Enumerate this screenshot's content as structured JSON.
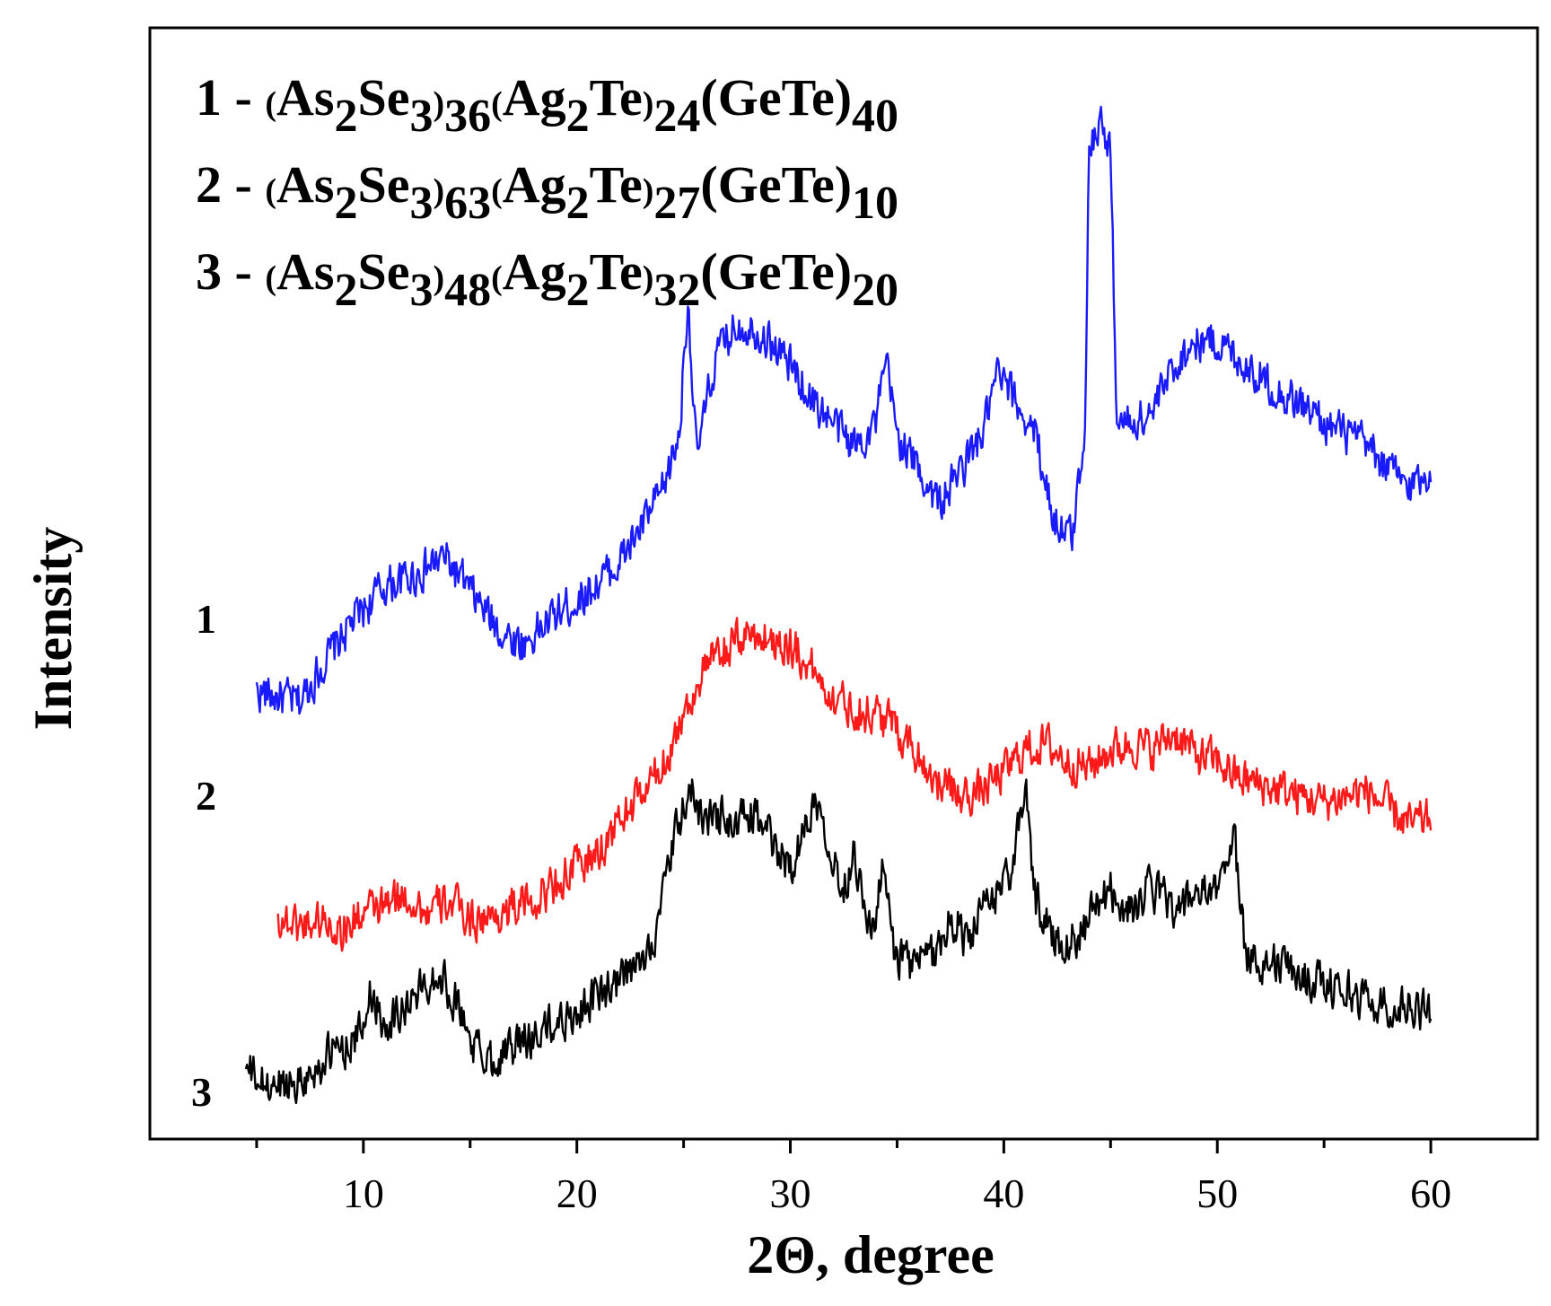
{
  "chart_data": {
    "type": "line",
    "xlabel": "2Θ, degree",
    "ylabel": "Intensity",
    "xlim": [
      0,
      65
    ],
    "x_ticks": [
      10,
      20,
      30,
      40,
      50,
      60
    ],
    "y_ticks_shown": false,
    "legend_position": "top-left",
    "legend": [
      {
        "number": "1",
        "parts": [
          [
            "-",
            ""
          ],
          [
            "(",
            "s"
          ],
          [
            "As",
            ""
          ],
          [
            "2",
            "sub"
          ],
          [
            "Se",
            ""
          ],
          [
            "3",
            "sub"
          ],
          [
            ")",
            "s"
          ],
          [
            "36",
            "sub"
          ],
          [
            "(",
            "s"
          ],
          [
            "Ag",
            ""
          ],
          [
            "2",
            "sub"
          ],
          [
            "Te",
            ""
          ],
          [
            ")",
            "s"
          ],
          [
            "24",
            "sub"
          ],
          [
            "(GeTe)",
            ""
          ],
          [
            "40",
            "sub"
          ]
        ]
      },
      {
        "number": "2",
        "parts": [
          [
            "-",
            ""
          ],
          [
            "(",
            "s"
          ],
          [
            "As",
            ""
          ],
          [
            "2",
            "sub"
          ],
          [
            "Se",
            ""
          ],
          [
            "3",
            "sub"
          ],
          [
            ")",
            "s"
          ],
          [
            "63",
            "sub"
          ],
          [
            "(",
            "s"
          ],
          [
            "Ag",
            ""
          ],
          [
            "2",
            "sub"
          ],
          [
            "Te",
            ""
          ],
          [
            ")",
            "s"
          ],
          [
            "27",
            "sub"
          ],
          [
            "(GeTe)",
            ""
          ],
          [
            "10",
            "sub"
          ]
        ]
      },
      {
        "number": "3",
        "parts": [
          [
            "-",
            ""
          ],
          [
            "(",
            "s"
          ],
          [
            "As",
            ""
          ],
          [
            "2",
            "sub"
          ],
          [
            "Se",
            ""
          ],
          [
            "3",
            "sub"
          ],
          [
            ")",
            "s"
          ],
          [
            "48",
            "sub"
          ],
          [
            "(",
            "s"
          ],
          [
            "Ag",
            ""
          ],
          [
            "2",
            "sub"
          ],
          [
            "Te",
            ""
          ],
          [
            ")",
            "s"
          ],
          [
            "32",
            "sub"
          ],
          [
            "(GeTe)",
            ""
          ],
          [
            "20",
            "sub"
          ]
        ]
      }
    ],
    "series": [
      {
        "label": "1",
        "composition": "(As2Se3)36(Ag2Te)24(GeTe)40",
        "color": "#1a1aff",
        "x": [
          5.0,
          7.0,
          8.0,
          9.5,
          11.0,
          12.5,
          13.8,
          15.0,
          16.5,
          17.5,
          19.0,
          20.5,
          22.0,
          23.0,
          24.0,
          24.8,
          25.2,
          25.6,
          26.5,
          27.5,
          28.5,
          30.0,
          31.0,
          32.0,
          33.0,
          34.0,
          34.5,
          35.0,
          36.0,
          37.0,
          38.0,
          39.0,
          39.7,
          40.5,
          41.5,
          42.3,
          43.2,
          43.8,
          44.0,
          44.5,
          45.0,
          45.3,
          46.0,
          47.0,
          48.0,
          49.0,
          50.0,
          51.0,
          52.0,
          53.0,
          54.0,
          55.0,
          56.0,
          57.0,
          58.0,
          59.0,
          60.0
        ],
        "y": [
          2.0,
          1.9,
          2.2,
          2.6,
          2.9,
          3.0,
          3.15,
          2.85,
          2.5,
          2.4,
          2.65,
          2.85,
          3.1,
          3.4,
          3.7,
          4.2,
          5.4,
          4.0,
          4.85,
          5.15,
          5.1,
          4.8,
          4.5,
          4.3,
          4.1,
          4.3,
          4.8,
          4.2,
          3.9,
          3.6,
          3.9,
          4.2,
          4.7,
          4.5,
          4.2,
          3.5,
          3.3,
          4.3,
          6.7,
          6.9,
          6.6,
          4.3,
          4.3,
          4.4,
          4.8,
          5.0,
          5.0,
          4.85,
          4.7,
          4.55,
          4.45,
          4.3,
          4.2,
          4.1,
          3.9,
          3.75,
          3.9
        ]
      },
      {
        "label": "2",
        "composition": "(As2Se3)63(Ag2Te)27(GeTe)10",
        "color": "#ff1a1a",
        "x": [
          6.0,
          7.0,
          8.0,
          9.0,
          10.0,
          11.0,
          12.0,
          13.0,
          14.0,
          15.0,
          16.0,
          17.0,
          18.0,
          19.0,
          20.0,
          21.0,
          22.0,
          23.0,
          24.0,
          25.0,
          26.0,
          27.0,
          28.0,
          29.0,
          30.0,
          31.0,
          32.0,
          33.0,
          34.0,
          35.0,
          36.0,
          37.0,
          38.0,
          39.0,
          40.0,
          41.0,
          42.0,
          43.0,
          44.0,
          45.0,
          46.0,
          47.0,
          48.0,
          49.0,
          50.0,
          51.0,
          52.0,
          53.0,
          54.0,
          55.0,
          56.0,
          57.0,
          58.0,
          59.0,
          60.0
        ],
        "y": [
          0.05,
          0.0,
          0.05,
          -0.05,
          0.1,
          0.15,
          0.25,
          0.1,
          0.2,
          0.05,
          0.05,
          0.15,
          0.2,
          0.35,
          0.5,
          0.6,
          0.9,
          1.1,
          1.35,
          1.8,
          2.2,
          2.35,
          2.5,
          2.45,
          2.4,
          2.2,
          1.95,
          1.85,
          1.8,
          1.7,
          1.45,
          1.2,
          1.1,
          1.15,
          1.3,
          1.5,
          1.55,
          1.4,
          1.35,
          1.5,
          1.55,
          1.5,
          1.65,
          1.45,
          1.4,
          1.25,
          1.2,
          1.15,
          1.1,
          1.05,
          1.1,
          1.15,
          1.0,
          0.85,
          0.9
        ]
      },
      {
        "label": "3",
        "composition": "(As2Se3)48(Ag2Te)32(GeTe)20",
        "color": "#000000",
        "x": [
          4.5,
          5.5,
          6.5,
          7.5,
          8.5,
          9.5,
          10.0,
          10.3,
          11.0,
          12.0,
          13.0,
          13.5,
          14.5,
          15.0,
          15.5,
          16.0,
          17.0,
          18.0,
          19.0,
          20.0,
          21.0,
          22.0,
          23.0,
          23.8,
          24.3,
          24.8,
          25.3,
          25.8,
          26.3,
          26.8,
          27.3,
          28.0,
          28.5,
          29.0,
          29.5,
          30.0,
          30.5,
          31.0,
          31.5,
          32.0,
          32.5,
          33.0,
          33.3,
          33.8,
          34.4,
          34.8,
          35.5,
          36.5,
          37.3,
          37.7,
          38.3,
          39.0,
          39.8,
          40.5,
          41.0,
          41.5,
          42.5,
          43.5,
          44.3,
          45.0,
          45.8,
          46.8,
          47.5,
          48.3,
          49.0,
          49.8,
          50.4,
          50.8,
          51.3,
          52.0,
          53.0,
          54.0,
          55.0,
          56.0,
          57.0,
          58.0,
          59.0,
          60.0
        ],
        "y": [
          -1.25,
          -1.4,
          -1.35,
          -1.3,
          -1.1,
          -1.0,
          -0.9,
          -0.55,
          -0.85,
          -0.7,
          -0.5,
          -0.4,
          -0.7,
          -1.0,
          -1.1,
          -1.15,
          -1.05,
          -0.95,
          -0.85,
          -0.75,
          -0.6,
          -0.5,
          -0.35,
          0.0,
          0.5,
          0.9,
          1.15,
          0.95,
          0.9,
          0.95,
          0.8,
          0.95,
          0.9,
          0.75,
          0.6,
          0.5,
          0.7,
          1.05,
          1.0,
          0.55,
          0.3,
          0.65,
          0.35,
          -0.1,
          0.5,
          -0.2,
          -0.35,
          -0.3,
          -0.05,
          0.05,
          -0.15,
          0.1,
          0.3,
          0.55,
          1.2,
          0.2,
          -0.15,
          -0.1,
          0.15,
          0.3,
          0.1,
          0.3,
          0.25,
          0.1,
          0.3,
          0.2,
          0.6,
          0.75,
          -0.25,
          -0.3,
          -0.35,
          -0.45,
          -0.5,
          -0.55,
          -0.65,
          -0.7,
          -0.7,
          -0.75
        ]
      }
    ]
  }
}
